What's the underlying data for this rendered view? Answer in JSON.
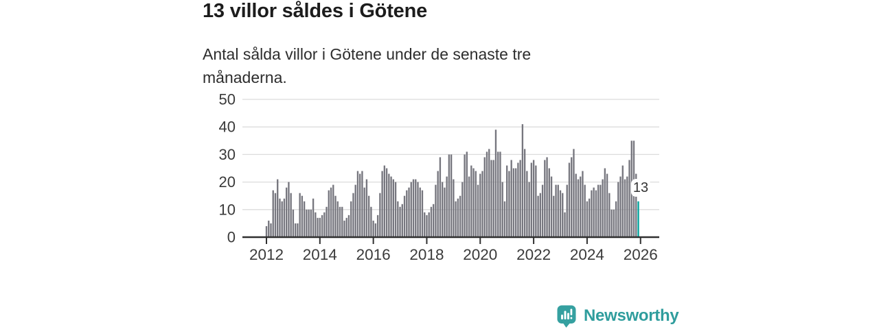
{
  "header": {
    "title": "13 villor såldes i Götene",
    "subtitle": "Antal sålda villor i Götene under de senaste tre månaderna."
  },
  "chart_data": {
    "type": "bar",
    "title": "13 villor såldes i Götene",
    "subtitle": "Antal sålda villor i Götene under de senaste tre månaderna.",
    "x_start": "2012-01",
    "x_end": "2025-12",
    "x_tick_labels": [
      "2012",
      "2014",
      "2016",
      "2018",
      "2020",
      "2022",
      "2024",
      "2026"
    ],
    "y_ticks": [
      0,
      10,
      20,
      30,
      40,
      50
    ],
    "ylim": [
      0,
      50
    ],
    "grid": "horizontal",
    "legend": "none",
    "bar_color": "#76767e",
    "highlight_color": "#00a29c",
    "highlight_index": 167,
    "highlight_label": "13",
    "values": [
      4,
      6,
      5,
      17,
      16,
      21,
      14,
      13,
      14,
      18,
      20,
      16,
      10,
      5,
      5,
      16,
      15,
      13,
      10,
      10,
      10,
      14,
      9,
      7,
      7,
      8,
      9,
      11,
      17,
      18,
      19,
      15,
      13,
      11,
      11,
      6,
      7,
      8,
      13,
      16,
      19,
      24,
      23,
      24,
      18,
      21,
      15,
      11,
      6,
      5,
      8,
      16,
      24,
      26,
      25,
      23,
      22,
      21,
      20,
      13,
      11,
      12,
      15,
      17,
      18,
      20,
      21,
      21,
      20,
      18,
      17,
      9,
      8,
      9,
      11,
      12,
      19,
      24,
      29,
      20,
      18,
      22,
      30,
      30,
      21,
      13,
      14,
      15,
      20,
      30,
      31,
      22,
      26,
      25,
      24,
      19,
      23,
      24,
      29,
      31,
      32,
      28,
      28,
      39,
      31,
      31,
      20,
      13,
      26,
      24,
      28,
      25,
      25,
      27,
      28,
      41,
      32,
      24,
      20,
      27,
      28,
      26,
      15,
      16,
      19,
      28,
      29,
      25,
      22,
      15,
      19,
      19,
      17,
      16,
      9,
      19,
      27,
      29,
      32,
      23,
      21,
      22,
      24,
      19,
      13,
      14,
      17,
      18,
      17,
      19,
      19,
      21,
      25,
      23,
      16,
      10,
      10,
      13,
      20,
      22,
      26,
      21,
      22,
      28,
      35,
      35,
      23,
      13
    ],
    "colors": {
      "axis_text": "#3a3a3a",
      "gridline": "#dcdcdc",
      "axis_line": "#2f2f2f"
    }
  },
  "footer": {
    "brand": "Newsworthy",
    "brand_color": "#2f9d9d",
    "logo_icon": "newsworthy-chart-bubble-icon"
  }
}
